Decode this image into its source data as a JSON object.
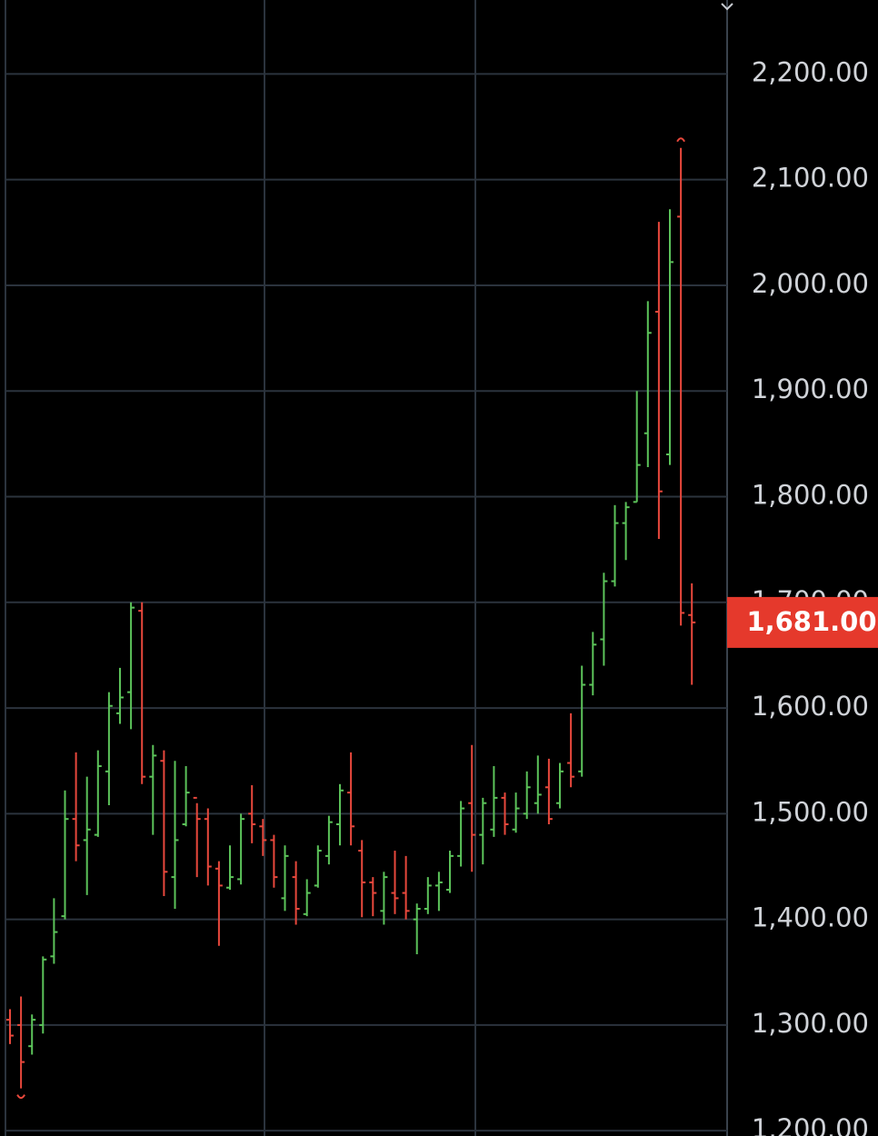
{
  "chart_data": {
    "type": "ohlc",
    "open": [
      1305,
      1300,
      1280,
      1300,
      1365,
      1403,
      1495,
      1475,
      1480,
      1540,
      1595,
      1615,
      1692,
      1535,
      1550,
      1440,
      1490,
      1515,
      1495,
      1448,
      1430,
      1438,
      1500,
      1488,
      1475,
      1420,
      1440,
      1405,
      1432,
      1460,
      1490,
      1520,
      1465,
      1435,
      1408,
      1425,
      1425,
      1400,
      1410,
      1432,
      1428,
      1460,
      1510,
      1480,
      1485,
      1515,
      1485,
      1500,
      1510,
      1525,
      1510,
      1548,
      1540,
      1622,
      1665,
      1720,
      1775,
      1795,
      1860,
      1975,
      1840,
      2065,
      1688
    ],
    "high": [
      1315,
      1327,
      1310,
      1365,
      1420,
      1522,
      1558,
      1535,
      1560,
      1615,
      1638,
      1700,
      1700,
      1565,
      1560,
      1550,
      1545,
      1510,
      1505,
      1455,
      1470,
      1500,
      1527,
      1495,
      1480,
      1470,
      1455,
      1438,
      1470,
      1498,
      1528,
      1558,
      1475,
      1440,
      1445,
      1465,
      1460,
      1415,
      1440,
      1445,
      1465,
      1512,
      1565,
      1515,
      1545,
      1520,
      1520,
      1540,
      1555,
      1552,
      1548,
      1595,
      1640,
      1672,
      1728,
      1792,
      1795,
      1900,
      1985,
      2060,
      2072,
      2130,
      1718
    ],
    "low": [
      1282,
      1240,
      1272,
      1292,
      1358,
      1400,
      1455,
      1423,
      1478,
      1508,
      1585,
      1580,
      1528,
      1480,
      1422,
      1410,
      1488,
      1440,
      1432,
      1375,
      1428,
      1433,
      1472,
      1460,
      1430,
      1408,
      1395,
      1403,
      1430,
      1452,
      1470,
      1470,
      1402,
      1403,
      1395,
      1405,
      1400,
      1367,
      1405,
      1408,
      1425,
      1450,
      1445,
      1452,
      1478,
      1480,
      1482,
      1495,
      1500,
      1490,
      1505,
      1525,
      1535,
      1612,
      1640,
      1715,
      1740,
      1795,
      1828,
      1760,
      1830,
      1678,
      1622
    ],
    "close": [
      1290,
      1265,
      1305,
      1362,
      1388,
      1495,
      1470,
      1485,
      1545,
      1602,
      1610,
      1695,
      1535,
      1555,
      1445,
      1475,
      1520,
      1495,
      1450,
      1432,
      1440,
      1495,
      1490,
      1475,
      1440,
      1460,
      1410,
      1425,
      1465,
      1492,
      1522,
      1488,
      1435,
      1425,
      1440,
      1420,
      1408,
      1410,
      1432,
      1435,
      1460,
      1505,
      1480,
      1510,
      1515,
      1490,
      1505,
      1525,
      1518,
      1495,
      1540,
      1535,
      1622,
      1660,
      1720,
      1775,
      1790,
      1830,
      1955,
      1805,
      2022,
      1690,
      1681
    ],
    "up_color": "#5cc35a",
    "down_color": "#e8483c",
    "ylim": [
      1195,
      2270
    ],
    "yticks": [
      {
        "value": 1200,
        "label": "1,200.00"
      },
      {
        "value": 1300,
        "label": "1,300.00"
      },
      {
        "value": 1400,
        "label": "1,400.00"
      },
      {
        "value": 1500,
        "label": "1,500.00"
      },
      {
        "value": 1600,
        "label": "1,600.00"
      },
      {
        "value": 1700,
        "label": "1,700.00"
      },
      {
        "value": 1800,
        "label": "1,800.00"
      },
      {
        "value": 1900,
        "label": "1,900.00"
      },
      {
        "value": 2000,
        "label": "2,000.00"
      },
      {
        "value": 2100,
        "label": "2,100.00"
      },
      {
        "value": 2200,
        "label": "2,200.00"
      }
    ],
    "grid": true,
    "last_price": 1681,
    "last_price_label": "1,681.00",
    "last_price_color": "#e5392c"
  }
}
